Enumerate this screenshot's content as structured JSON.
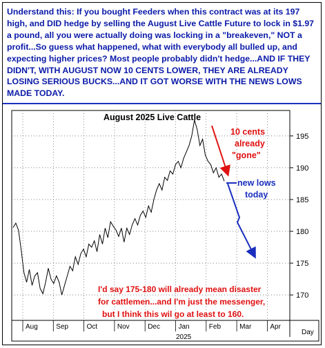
{
  "caption": {
    "text": "Understand this: If you bought Feeders when this contract was at its 197 high, and DID hedge by selling the August Live Cattle Future to lock in $1.97 a pound, all you were actually doing was locking in a \"breakeven,\" NOT a profit...So guess what happened, what with everybody all bulled up, and expecting higher prices? Most people probably didn't hedge...AND IF THEY DIDN'T, WITH AUGUST NOW 10 CENTS LOWER, THEY ARE ALREADY LOSING SERIOUS BUCKS...AND IT GOT WORSE WITH THE NEWS LOWS MADE TODAY."
  },
  "colors": {
    "caption_text": "#0a1aa8",
    "price_line": "#000000",
    "red_annotation": "#e01010",
    "blue_annotation": "#1a2fbf"
  },
  "chart_data": {
    "type": "line",
    "title": "August 2025 Live Cattle",
    "xlabel": "Day",
    "ylabel": "",
    "ylim": [
      166,
      199
    ],
    "yticks": [
      170,
      175,
      180,
      185,
      190,
      195
    ],
    "month_labels": [
      "Aug",
      "Sep",
      "Oct",
      "Nov",
      "Dec",
      "Jan",
      "Feb",
      "Mar",
      "Apr"
    ],
    "year_label": "2025",
    "grid": true,
    "series": [
      {
        "values": [
          180.6,
          181.3,
          180.2,
          177.0,
          173.5,
          172.0,
          174.0,
          171.5,
          173.0,
          173.5,
          171.0,
          170.2,
          172.0,
          174.2,
          172.5,
          171.8,
          173.0,
          172.0,
          170.0,
          171.5,
          173.0,
          174.5,
          173.8,
          176.0,
          174.8,
          176.5,
          177.2,
          176.0,
          178.0,
          177.5,
          178.5,
          176.8,
          179.5,
          178.0,
          180.5,
          179.0,
          181.5,
          180.8,
          180.2,
          179.2,
          180.5,
          178.3,
          180.5,
          179.5,
          181.0,
          182.0,
          181.0,
          182.5,
          183.2,
          182.2,
          184.0,
          183.0,
          185.0,
          186.5,
          187.5,
          186.5,
          188.5,
          188.0,
          189.5,
          189.0,
          190.5,
          191.0,
          190.0,
          191.5,
          192.5,
          193.5,
          195.0,
          197.5,
          196.0,
          193.5,
          194.5,
          192.0,
          191.0,
          190.5,
          189.2,
          190.0,
          188.5,
          189.0,
          187.9
        ]
      }
    ],
    "annotations": [
      {
        "text": "10 cents already \"gone\""
      },
      {
        "text": "new lows today"
      },
      {
        "text": "I'd say 175-180 will already mean disaster for cattlemen...and I'm just the messenger, but I think this wil go at least to 160."
      }
    ]
  }
}
